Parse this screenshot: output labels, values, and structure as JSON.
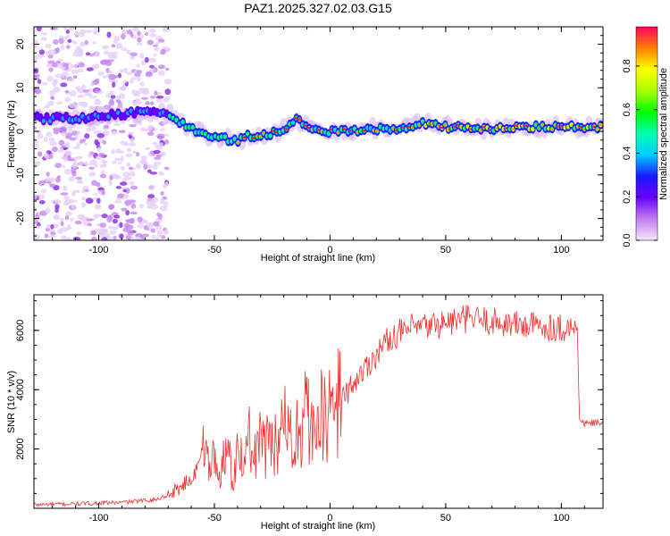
{
  "title": "PAZ1.2025.327.02.03.G15",
  "chart_data": [
    {
      "type": "heatmap",
      "xlabel": "Height of straight line (km)",
      "ylabel": "Frequency (Hz)",
      "xlim": [
        -128,
        118
      ],
      "ylim": [
        -25,
        24
      ],
      "xticks": [
        "-100",
        "-50",
        "0",
        "50",
        "100"
      ],
      "yticks": [
        "-20",
        "-10",
        "0",
        "10",
        "20"
      ],
      "colorbar": {
        "label": "Normalized spectral amplitude",
        "range": [
          0,
          0.98
        ],
        "ticks": [
          "0.0",
          "0.2",
          "0.4",
          "0.6",
          "0.8"
        ]
      },
      "ridge": {
        "x": [
          -125,
          -110,
          -100,
          -90,
          -80,
          -70,
          -60,
          -50,
          -40,
          -35,
          -30,
          -25,
          -20,
          -15,
          -10,
          -5,
          0,
          10,
          20,
          30,
          40,
          50,
          60,
          70,
          80,
          90,
          100,
          110,
          118
        ],
        "y": [
          3,
          3,
          3.5,
          4,
          4.5,
          4,
          0.5,
          -1.5,
          -2,
          -1,
          -1,
          -0.5,
          0.5,
          3,
          1,
          0.5,
          0,
          0.2,
          0.5,
          0.5,
          2,
          1,
          1,
          0.5,
          1,
          1,
          1,
          1,
          1
        ]
      }
    },
    {
      "type": "line",
      "xlabel": "Height of straight line (km)",
      "ylabel": "SNR (10 * v/v)",
      "xlim": [
        -128,
        118
      ],
      "ylim": [
        0,
        7200
      ],
      "xticks": [
        "-100",
        "-50",
        "0",
        "50",
        "100"
      ],
      "yticks": [
        "2000",
        "4000",
        "6000"
      ],
      "color": "#ee3030",
      "series": [
        {
          "x": [
            -128,
            -110,
            -90,
            -75,
            -70,
            -65,
            -60,
            -57,
            -55,
            -52,
            -50,
            -47,
            -45,
            -42,
            -40,
            -37,
            -35,
            -32,
            -30,
            -27,
            -25,
            -22,
            -20,
            -17,
            -15,
            -12,
            -10,
            -7,
            -5,
            -3,
            0,
            5,
            10,
            15,
            20,
            25,
            30,
            35,
            40,
            50,
            60,
            65,
            70,
            80,
            90,
            100,
            107,
            108,
            110,
            118
          ],
          "y": [
            120,
            150,
            200,
            300,
            450,
            700,
            1000,
            1400,
            2200,
            1400,
            1600,
            1300,
            1900,
            1200,
            1700,
            1500,
            2400,
            1600,
            2500,
            2000,
            2600,
            1800,
            3300,
            2200,
            2700,
            2500,
            3500,
            2300,
            3300,
            2900,
            3200,
            3700,
            4200,
            4700,
            5200,
            5700,
            5900,
            6050,
            6100,
            6250,
            6400,
            6350,
            6300,
            6200,
            6150,
            6100,
            6050,
            2900,
            2850,
            2900
          ]
        }
      ]
    }
  ]
}
